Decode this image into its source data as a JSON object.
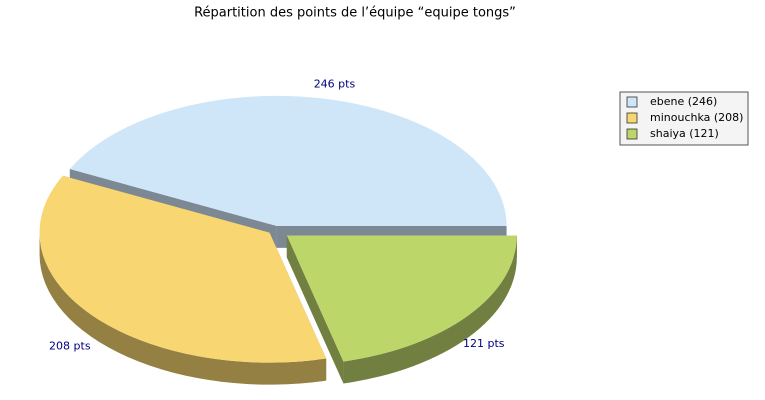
{
  "chart_data": {
    "type": "pie3d",
    "title": "Répartition des points de l’équipe “equipe  tongs”",
    "categories": [
      "ebene (246)",
      "minouchka (208)",
      "shaiya (121)"
    ],
    "values": [
      246,
      208,
      121
    ],
    "value_labels": [
      "246 pts",
      "208 pts",
      "121 pts"
    ],
    "colors": [
      "#cfe5f8",
      "#f8d672",
      "#bcd66a"
    ],
    "legend": "top-right"
  }
}
